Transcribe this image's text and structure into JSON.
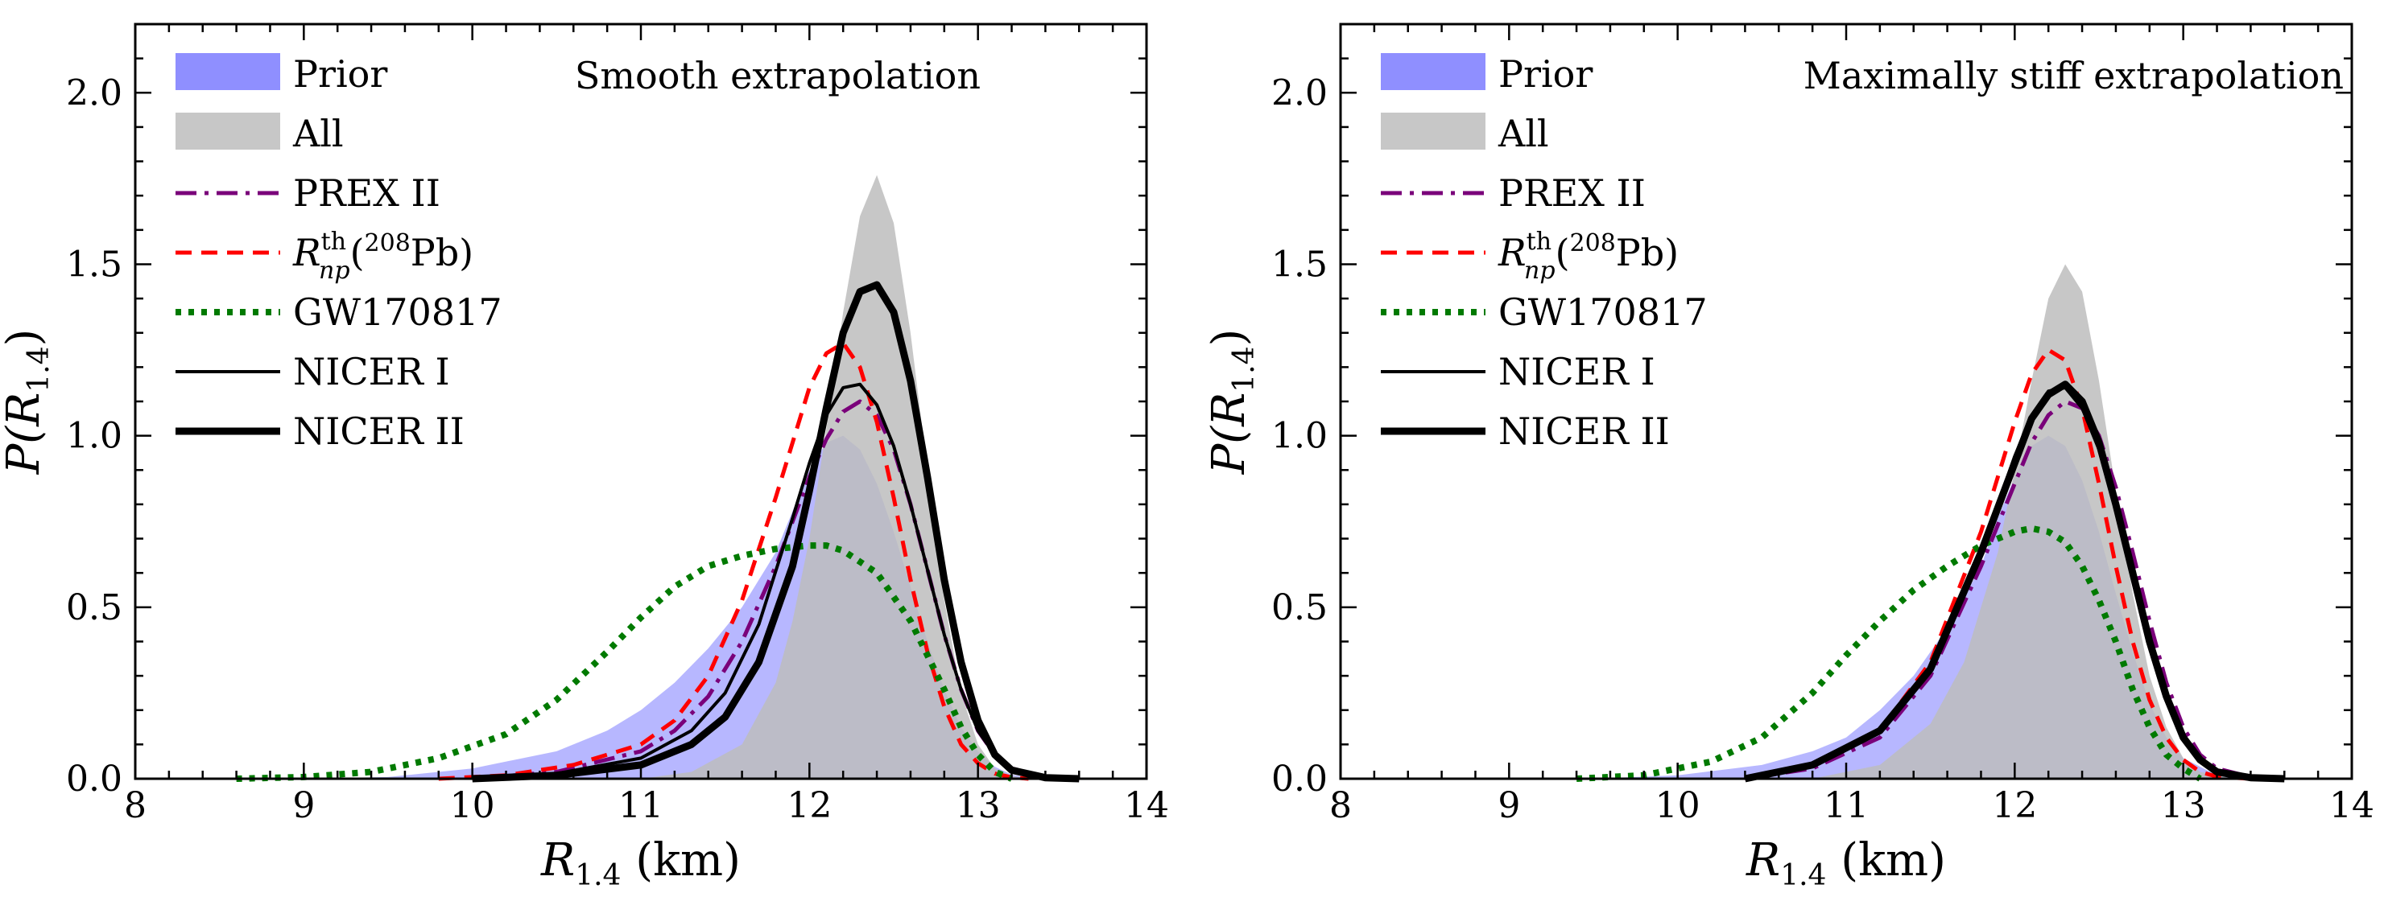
{
  "figure": {
    "ylabel": "P(R",
    "ylabel_sub": "1.4",
    "ylabel_tail": ")",
    "xlabel": "R",
    "xlabel_sub": "1.4",
    "xlabel_tail": " (km)"
  },
  "legend": [
    {
      "key": "prior",
      "label": "Prior",
      "style": "fill",
      "color": "#7b7bff"
    },
    {
      "key": "all",
      "label": "All",
      "style": "fill",
      "color": "#bdbdbd"
    },
    {
      "key": "prex",
      "label": "PREX II",
      "style": "dashdot",
      "color": "#7a007a"
    },
    {
      "key": "rnp",
      "label_parts": {
        "main": "R",
        "sup": "th",
        "sub": "np",
        "open": "(",
        "iso": "208",
        "elem": "Pb)"
      },
      "style": "dashed",
      "color": "#ff0000"
    },
    {
      "key": "gw",
      "label": "GW170817",
      "style": "dotted",
      "color": "#007a00"
    },
    {
      "key": "n1",
      "label": "NICER I",
      "style": "thin",
      "color": "#000000"
    },
    {
      "key": "n2",
      "label": "NICER II",
      "style": "thick",
      "color": "#000000"
    }
  ],
  "chart_data": [
    {
      "type": "area",
      "title": "Smooth extrapolation",
      "xlim": [
        8,
        14
      ],
      "ylim": [
        0,
        2.2
      ],
      "xticks": [
        "8",
        "9",
        "10",
        "11",
        "12",
        "13",
        "14"
      ],
      "yticks": [
        "0.0",
        "0.5",
        "1.0",
        "1.5",
        "2.0"
      ],
      "series": [
        {
          "name": "Prior",
          "key": "prior",
          "x": [
            9.0,
            9.5,
            10.0,
            10.5,
            10.8,
            11.0,
            11.2,
            11.4,
            11.6,
            11.8,
            11.9,
            12.0,
            12.1,
            12.2,
            12.3,
            12.4,
            12.5,
            12.6,
            12.7,
            12.8,
            12.9,
            13.0,
            13.1,
            13.2,
            13.3,
            13.5
          ],
          "y": [
            0.0,
            0.005,
            0.03,
            0.08,
            0.14,
            0.2,
            0.28,
            0.38,
            0.5,
            0.66,
            0.78,
            0.9,
            0.98,
            1.0,
            0.96,
            0.86,
            0.72,
            0.56,
            0.4,
            0.26,
            0.15,
            0.08,
            0.035,
            0.012,
            0.003,
            0.0
          ]
        },
        {
          "name": "All",
          "key": "all",
          "x": [
            11.0,
            11.3,
            11.6,
            11.8,
            11.9,
            12.0,
            12.1,
            12.2,
            12.3,
            12.4,
            12.5,
            12.6,
            12.7,
            12.8,
            12.9,
            13.0,
            13.1,
            13.2,
            13.3
          ],
          "y": [
            0.0,
            0.02,
            0.1,
            0.28,
            0.46,
            0.7,
            1.02,
            1.36,
            1.64,
            1.76,
            1.62,
            1.3,
            0.9,
            0.52,
            0.25,
            0.1,
            0.03,
            0.008,
            0.0
          ]
        },
        {
          "name": "PREX II",
          "key": "prex",
          "x": [
            10.0,
            10.5,
            11.0,
            11.2,
            11.4,
            11.6,
            11.8,
            12.0,
            12.1,
            12.2,
            12.3,
            12.4,
            12.5,
            12.6,
            12.7,
            12.8,
            12.9,
            13.0,
            13.1,
            13.2,
            13.4,
            13.6
          ],
          "y": [
            0.0,
            0.02,
            0.08,
            0.14,
            0.24,
            0.4,
            0.62,
            0.88,
            0.99,
            1.07,
            1.1,
            1.06,
            0.96,
            0.8,
            0.61,
            0.42,
            0.26,
            0.14,
            0.07,
            0.03,
            0.005,
            0.0
          ]
        },
        {
          "name": "Rnp(208Pb)",
          "key": "rnp",
          "x": [
            9.8,
            10.2,
            10.6,
            11.0,
            11.2,
            11.4,
            11.6,
            11.8,
            12.0,
            12.1,
            12.2,
            12.3,
            12.4,
            12.5,
            12.6,
            12.7,
            12.8,
            12.9,
            13.0,
            13.1,
            13.2,
            13.3
          ],
          "y": [
            0.0,
            0.01,
            0.04,
            0.1,
            0.17,
            0.3,
            0.52,
            0.82,
            1.14,
            1.24,
            1.27,
            1.2,
            1.04,
            0.82,
            0.58,
            0.37,
            0.21,
            0.1,
            0.045,
            0.015,
            0.004,
            0.0
          ]
        },
        {
          "name": "GW170817",
          "key": "gw",
          "x": [
            8.6,
            9.0,
            9.4,
            9.8,
            10.2,
            10.5,
            10.8,
            11.0,
            11.2,
            11.4,
            11.6,
            11.8,
            12.0,
            12.1,
            12.2,
            12.4,
            12.6,
            12.8,
            12.9,
            13.0,
            13.1,
            13.2
          ],
          "y": [
            0.0,
            0.005,
            0.02,
            0.06,
            0.13,
            0.23,
            0.37,
            0.47,
            0.56,
            0.62,
            0.65,
            0.67,
            0.68,
            0.68,
            0.665,
            0.6,
            0.46,
            0.26,
            0.15,
            0.07,
            0.02,
            0.0
          ]
        },
        {
          "name": "NICER I",
          "key": "n1",
          "x": [
            10.0,
            10.5,
            11.0,
            11.3,
            11.5,
            11.7,
            11.9,
            12.0,
            12.1,
            12.2,
            12.3,
            12.4,
            12.5,
            12.6,
            12.7,
            12.8,
            12.9,
            13.0,
            13.1,
            13.2,
            13.4,
            13.6
          ],
          "y": [
            0.0,
            0.015,
            0.06,
            0.14,
            0.25,
            0.45,
            0.76,
            0.92,
            1.06,
            1.14,
            1.15,
            1.09,
            0.97,
            0.8,
            0.61,
            0.42,
            0.26,
            0.14,
            0.07,
            0.03,
            0.005,
            0.0
          ]
        },
        {
          "name": "NICER II",
          "key": "n2",
          "x": [
            10.0,
            10.5,
            11.0,
            11.3,
            11.5,
            11.7,
            11.9,
            12.0,
            12.1,
            12.2,
            12.3,
            12.4,
            12.5,
            12.6,
            12.7,
            12.8,
            12.9,
            13.0,
            13.1,
            13.2,
            13.4,
            13.6
          ],
          "y": [
            0.0,
            0.01,
            0.04,
            0.1,
            0.18,
            0.34,
            0.62,
            0.84,
            1.08,
            1.3,
            1.42,
            1.44,
            1.36,
            1.16,
            0.88,
            0.58,
            0.34,
            0.17,
            0.07,
            0.025,
            0.003,
            0.0
          ]
        }
      ]
    },
    {
      "type": "area",
      "title": "Maximally stiff extrapolation",
      "xlim": [
        8,
        14
      ],
      "ylim": [
        0,
        2.2
      ],
      "xticks": [
        "8",
        "9",
        "10",
        "11",
        "12",
        "13",
        "14"
      ],
      "yticks": [
        "0.0",
        "0.5",
        "1.0",
        "1.5",
        "2.0"
      ],
      "series": [
        {
          "name": "Prior",
          "key": "prior",
          "x": [
            9.5,
            10.0,
            10.5,
            10.8,
            11.0,
            11.2,
            11.4,
            11.6,
            11.8,
            11.9,
            12.0,
            12.1,
            12.2,
            12.3,
            12.4,
            12.5,
            12.6,
            12.7,
            12.8,
            12.9,
            13.0,
            13.2,
            13.4
          ],
          "y": [
            0.0,
            0.01,
            0.04,
            0.08,
            0.12,
            0.2,
            0.3,
            0.44,
            0.62,
            0.76,
            0.88,
            0.97,
            1.0,
            0.97,
            0.87,
            0.72,
            0.54,
            0.37,
            0.22,
            0.12,
            0.06,
            0.01,
            0.0
          ]
        },
        {
          "name": "All",
          "key": "all",
          "x": [
            10.8,
            11.2,
            11.5,
            11.7,
            11.9,
            12.0,
            12.1,
            12.2,
            12.3,
            12.4,
            12.5,
            12.6,
            12.7,
            12.8,
            12.9,
            13.0,
            13.1,
            13.3
          ],
          "y": [
            0.0,
            0.04,
            0.16,
            0.34,
            0.66,
            0.9,
            1.16,
            1.4,
            1.5,
            1.42,
            1.16,
            0.84,
            0.54,
            0.3,
            0.15,
            0.06,
            0.02,
            0.0
          ]
        },
        {
          "name": "PREX II",
          "key": "prex",
          "x": [
            10.4,
            10.8,
            11.2,
            11.5,
            11.8,
            12.0,
            12.1,
            12.2,
            12.3,
            12.4,
            12.5,
            12.6,
            12.7,
            12.8,
            12.9,
            13.0,
            13.1,
            13.2,
            13.4,
            13.6
          ],
          "y": [
            0.0,
            0.03,
            0.12,
            0.3,
            0.62,
            0.86,
            0.98,
            1.06,
            1.1,
            1.08,
            1.0,
            0.85,
            0.66,
            0.46,
            0.28,
            0.15,
            0.07,
            0.03,
            0.005,
            0.0
          ]
        },
        {
          "name": "Rnp(208Pb)",
          "key": "rnp",
          "x": [
            10.4,
            10.8,
            11.2,
            11.5,
            11.8,
            12.0,
            12.1,
            12.2,
            12.3,
            12.4,
            12.5,
            12.6,
            12.7,
            12.8,
            12.9,
            13.0,
            13.1,
            13.2,
            13.4
          ],
          "y": [
            0.0,
            0.04,
            0.14,
            0.34,
            0.72,
            1.04,
            1.18,
            1.25,
            1.22,
            1.08,
            0.86,
            0.62,
            0.4,
            0.23,
            0.12,
            0.055,
            0.02,
            0.006,
            0.0
          ]
        },
        {
          "name": "GW170817",
          "key": "gw",
          "x": [
            9.4,
            9.8,
            10.2,
            10.5,
            10.8,
            11.0,
            11.2,
            11.4,
            11.6,
            11.8,
            12.0,
            12.1,
            12.2,
            12.3,
            12.4,
            12.5,
            12.6,
            12.7,
            12.8,
            12.9,
            13.0,
            13.1
          ],
          "y": [
            0.0,
            0.01,
            0.05,
            0.12,
            0.25,
            0.36,
            0.46,
            0.55,
            0.62,
            0.68,
            0.72,
            0.73,
            0.72,
            0.69,
            0.62,
            0.52,
            0.4,
            0.26,
            0.15,
            0.07,
            0.03,
            0.0
          ]
        },
        {
          "name": "NICER I",
          "key": "n1",
          "x": [
            10.4,
            10.8,
            11.2,
            11.5,
            11.8,
            12.0,
            12.1,
            12.2,
            12.3,
            12.4,
            12.5,
            12.6,
            12.7,
            12.8,
            12.9,
            13.0,
            13.1,
            13.2,
            13.4,
            13.6
          ],
          "y": [
            0.0,
            0.04,
            0.14,
            0.32,
            0.66,
            0.94,
            1.06,
            1.13,
            1.14,
            1.08,
            0.96,
            0.78,
            0.58,
            0.39,
            0.24,
            0.13,
            0.06,
            0.025,
            0.004,
            0.0
          ]
        },
        {
          "name": "NICER II",
          "key": "n2",
          "x": [
            10.4,
            10.8,
            11.2,
            11.5,
            11.8,
            12.0,
            12.1,
            12.2,
            12.3,
            12.4,
            12.5,
            12.6,
            12.7,
            12.8,
            12.9,
            13.0,
            13.1,
            13.2,
            13.4,
            13.6
          ],
          "y": [
            0.0,
            0.04,
            0.14,
            0.32,
            0.66,
            0.92,
            1.05,
            1.12,
            1.15,
            1.1,
            0.98,
            0.8,
            0.6,
            0.4,
            0.24,
            0.12,
            0.055,
            0.02,
            0.003,
            0.0
          ]
        }
      ]
    }
  ]
}
